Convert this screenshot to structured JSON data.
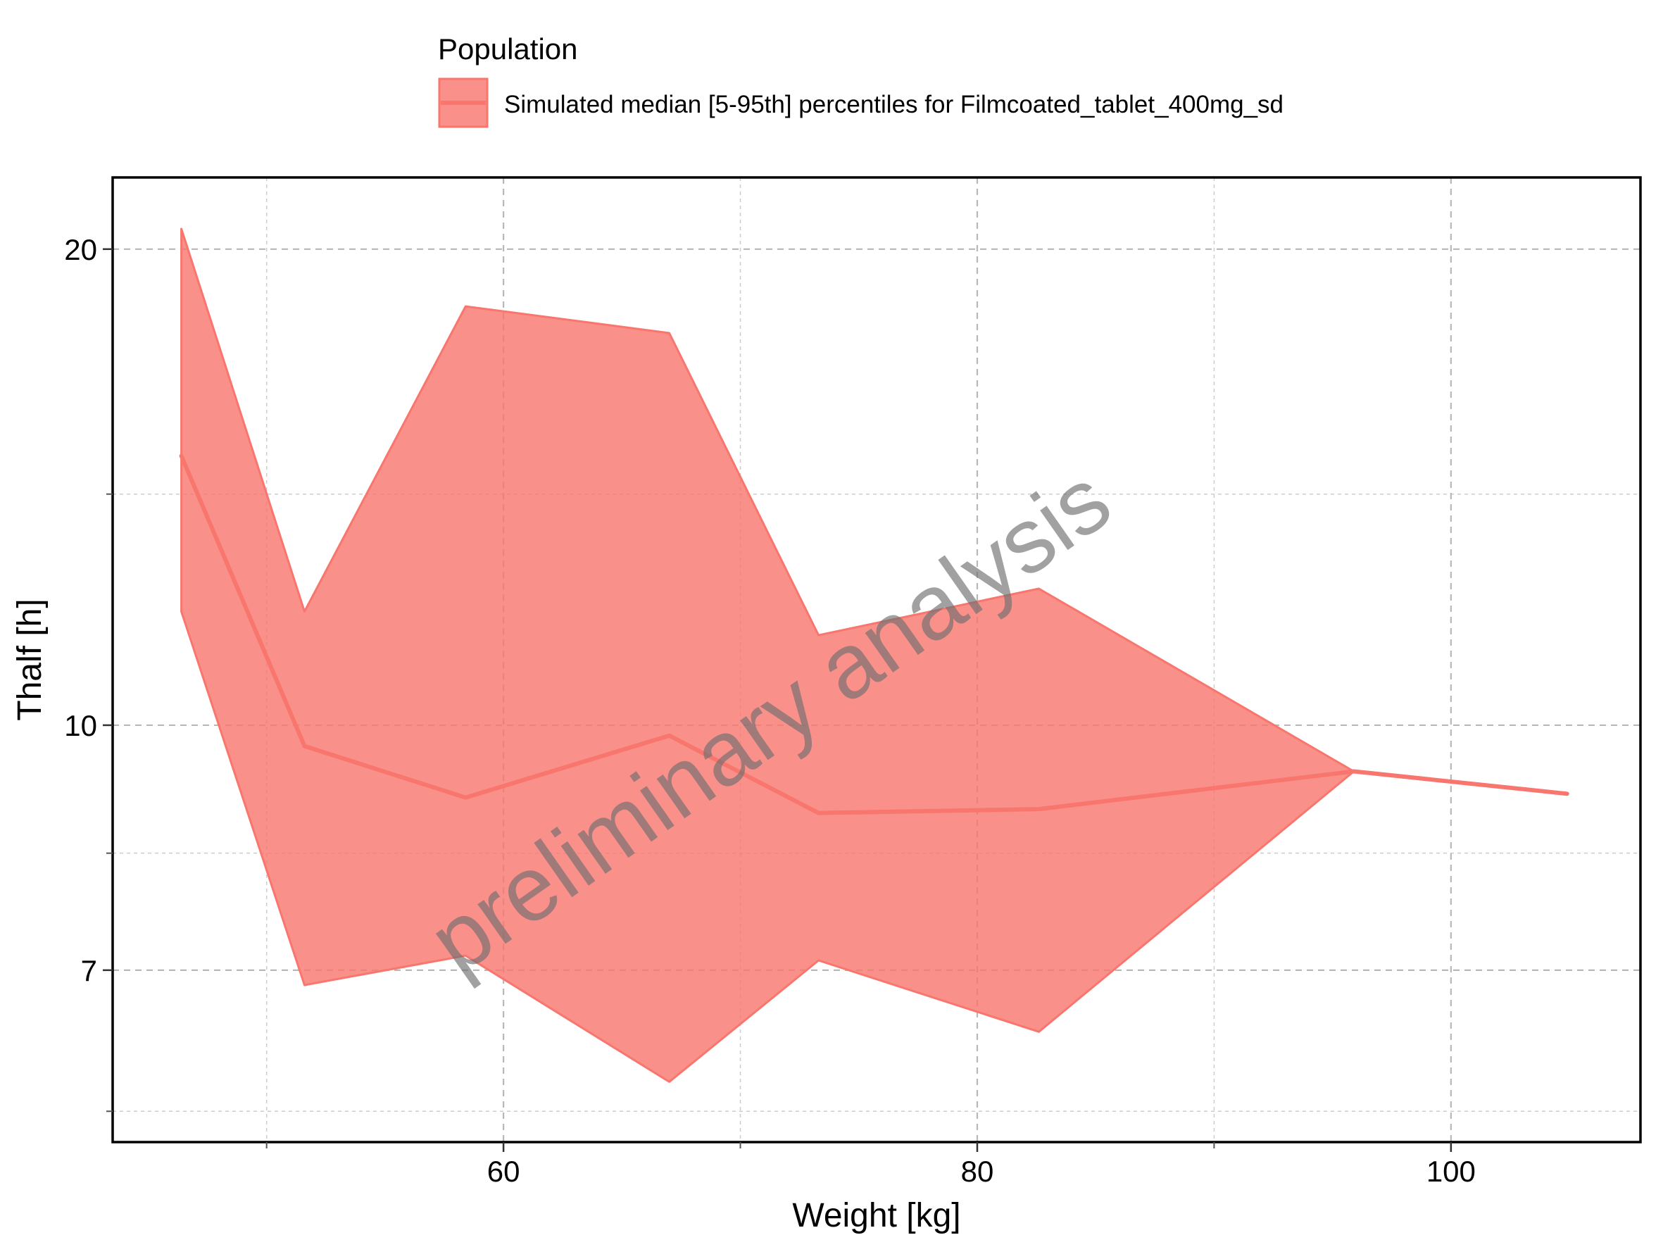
{
  "chart_data": {
    "type": "area",
    "legend": {
      "title": "Population",
      "position": "top",
      "entries": [
        "Simulated median [5-95th] percentiles for Filmcoated_tablet_400mg_sd"
      ]
    },
    "xlabel": "Weight [kg]",
    "ylabel": "Thalf [h]",
    "xlim": [
      43.5,
      108
    ],
    "ylim": [
      5.45,
      22.2
    ],
    "y_scale": "log",
    "x_ticks": [
      60,
      80,
      100
    ],
    "x_minor_ticks": [
      50,
      70,
      90
    ],
    "y_ticks": [
      7,
      10,
      20
    ],
    "y_minor_ticks": [
      5.7,
      8.3,
      14
    ],
    "grid": true,
    "watermark": "preliminary analysis",
    "colors": {
      "band": "#f8766d",
      "line": "#f8766d"
    },
    "series": [
      {
        "name": "Simulated median [5-95th] percentiles for Filmcoated_tablet_400mg_sd",
        "x": [
          46.4,
          51.6,
          58.4,
          67.0,
          73.3,
          82.6,
          95.9,
          104.9
        ],
        "median": [
          14.8,
          9.7,
          9.0,
          9.85,
          8.8,
          8.85,
          9.35,
          9.05
        ],
        "lower": [
          11.8,
          6.85,
          7.15,
          5.95,
          7.1,
          6.4,
          9.35,
          9.05
        ],
        "upper": [
          20.6,
          11.8,
          18.4,
          17.7,
          11.4,
          12.2,
          9.35,
          9.05
        ]
      }
    ]
  }
}
